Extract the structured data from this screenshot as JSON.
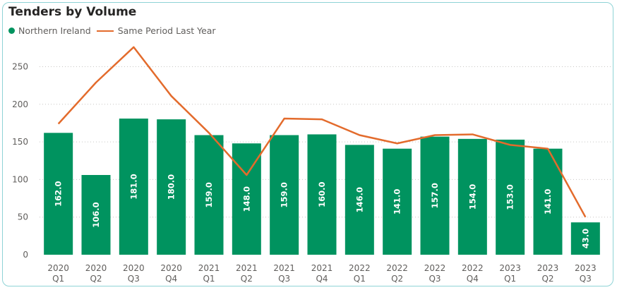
{
  "colors": {
    "bar": "#00935f",
    "line": "#e36b2c",
    "grid": "#c8c6c4",
    "border": "#8fd3d6"
  },
  "chart_data": {
    "type": "bar",
    "title": "Tenders by Volume",
    "legend": [
      "Northern Ireland",
      "Same Period Last Year"
    ],
    "legend_position": "top-left",
    "grid": true,
    "ylim": [
      0,
      280
    ],
    "yticks": [
      0,
      50,
      100,
      150,
      200,
      250
    ],
    "categories": [
      [
        "2020",
        "Q1"
      ],
      [
        "2020",
        "Q2"
      ],
      [
        "2020",
        "Q3"
      ],
      [
        "2020",
        "Q4"
      ],
      [
        "2021",
        "Q1"
      ],
      [
        "2021",
        "Q2"
      ],
      [
        "2021",
        "Q3"
      ],
      [
        "2021",
        "Q4"
      ],
      [
        "2022",
        "Q1"
      ],
      [
        "2022",
        "Q2"
      ],
      [
        "2022",
        "Q3"
      ],
      [
        "2022",
        "Q4"
      ],
      [
        "2023",
        "Q1"
      ],
      [
        "2023",
        "Q2"
      ],
      [
        "2023",
        "Q3"
      ]
    ],
    "series": [
      {
        "name": "Northern Ireland",
        "type": "bar",
        "values": [
          162,
          106,
          181,
          180,
          159,
          148,
          159,
          160,
          146,
          141,
          157,
          154,
          153,
          141,
          43
        ],
        "labels": [
          "162.0",
          "106.0",
          "181.0",
          "180.0",
          "159.0",
          "148.0",
          "159.0",
          "160.0",
          "146.0",
          "141.0",
          "157.0",
          "154.0",
          "153.0",
          "141.0",
          "43.0"
        ]
      },
      {
        "name": "Same Period Last Year",
        "type": "line",
        "values": [
          174,
          229,
          276,
          211,
          162,
          106,
          181,
          180,
          159,
          148,
          159,
          160,
          146,
          141,
          50
        ]
      }
    ]
  }
}
